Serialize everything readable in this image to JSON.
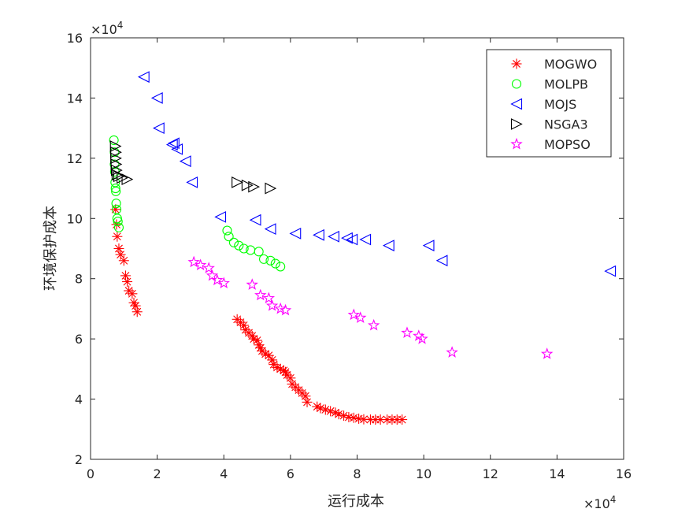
{
  "chart_data": {
    "type": "scatter",
    "title": "",
    "xlabel": "运行成本",
    "ylabel": "环境保护成本",
    "x_exponent": "×10^4",
    "y_exponent": "×10^4",
    "xlim": [
      0,
      16
    ],
    "ylim": [
      2,
      16
    ],
    "xticks": [
      0,
      2,
      4,
      6,
      8,
      10,
      12,
      14,
      16
    ],
    "yticks": [
      2,
      4,
      6,
      8,
      10,
      12,
      14,
      16
    ],
    "grid": false,
    "legend_position": "top-right",
    "series": [
      {
        "name": "MOGWO",
        "marker": "asterisk",
        "color": "#ff0000",
        "points": [
          [
            0.75,
            10.3
          ],
          [
            0.78,
            9.8
          ],
          [
            0.8,
            9.4
          ],
          [
            0.85,
            9.0
          ],
          [
            0.9,
            8.8
          ],
          [
            1.0,
            8.6
          ],
          [
            1.05,
            8.1
          ],
          [
            1.1,
            7.9
          ],
          [
            1.15,
            7.6
          ],
          [
            1.25,
            7.5
          ],
          [
            1.3,
            7.2
          ],
          [
            1.35,
            7.1
          ],
          [
            1.4,
            6.9
          ],
          [
            4.4,
            6.65
          ],
          [
            4.5,
            6.55
          ],
          [
            4.6,
            6.45
          ],
          [
            4.65,
            6.3
          ],
          [
            4.75,
            6.2
          ],
          [
            4.85,
            6.1
          ],
          [
            4.9,
            6.0
          ],
          [
            5.0,
            5.95
          ],
          [
            5.05,
            5.8
          ],
          [
            5.1,
            5.7
          ],
          [
            5.15,
            5.6
          ],
          [
            5.25,
            5.5
          ],
          [
            5.35,
            5.45
          ],
          [
            5.45,
            5.3
          ],
          [
            5.5,
            5.15
          ],
          [
            5.6,
            5.05
          ],
          [
            5.7,
            5.0
          ],
          [
            5.8,
            4.95
          ],
          [
            5.85,
            4.9
          ],
          [
            5.9,
            4.8
          ],
          [
            6.0,
            4.7
          ],
          [
            6.05,
            4.5
          ],
          [
            6.15,
            4.4
          ],
          [
            6.25,
            4.3
          ],
          [
            6.35,
            4.2
          ],
          [
            6.45,
            4.1
          ],
          [
            6.5,
            3.9
          ],
          [
            6.8,
            3.75
          ],
          [
            6.9,
            3.7
          ],
          [
            7.05,
            3.65
          ],
          [
            7.2,
            3.6
          ],
          [
            7.35,
            3.55
          ],
          [
            7.45,
            3.5
          ],
          [
            7.6,
            3.45
          ],
          [
            7.75,
            3.4
          ],
          [
            7.9,
            3.38
          ],
          [
            8.05,
            3.35
          ],
          [
            8.2,
            3.33
          ],
          [
            8.4,
            3.32
          ],
          [
            8.55,
            3.32
          ],
          [
            8.7,
            3.32
          ],
          [
            8.9,
            3.32
          ],
          [
            9.05,
            3.32
          ],
          [
            9.2,
            3.32
          ],
          [
            9.35,
            3.32
          ]
        ]
      },
      {
        "name": "MOLPB",
        "marker": "circle",
        "color": "#00ff00",
        "points": [
          [
            0.7,
            12.6
          ],
          [
            0.72,
            12.2
          ],
          [
            0.72,
            11.8
          ],
          [
            0.73,
            11.55
          ],
          [
            0.74,
            11.2
          ],
          [
            0.75,
            11.0
          ],
          [
            0.76,
            10.9
          ],
          [
            0.77,
            10.5
          ],
          [
            0.78,
            10.3
          ],
          [
            0.8,
            10.0
          ],
          [
            0.82,
            9.9
          ],
          [
            0.85,
            9.7
          ],
          [
            4.1,
            9.6
          ],
          [
            4.15,
            9.4
          ],
          [
            4.3,
            9.2
          ],
          [
            4.45,
            9.1
          ],
          [
            4.6,
            9.0
          ],
          [
            4.8,
            8.95
          ],
          [
            5.05,
            8.9
          ],
          [
            5.2,
            8.65
          ],
          [
            5.4,
            8.6
          ],
          [
            5.55,
            8.5
          ],
          [
            5.7,
            8.4
          ]
        ]
      },
      {
        "name": "MOJS",
        "marker": "triangle-left",
        "color": "#0000ff",
        "points": [
          [
            1.6,
            14.7
          ],
          [
            2.0,
            14.0
          ],
          [
            2.05,
            13.0
          ],
          [
            2.45,
            12.45
          ],
          [
            2.5,
            12.5
          ],
          [
            2.6,
            12.3
          ],
          [
            2.85,
            11.9
          ],
          [
            3.05,
            11.2
          ],
          [
            3.9,
            10.05
          ],
          [
            4.95,
            9.95
          ],
          [
            5.4,
            9.65
          ],
          [
            6.15,
            9.5
          ],
          [
            6.85,
            9.45
          ],
          [
            7.3,
            9.4
          ],
          [
            7.7,
            9.35
          ],
          [
            7.85,
            9.3
          ],
          [
            8.25,
            9.3
          ],
          [
            8.95,
            9.1
          ],
          [
            10.15,
            9.1
          ],
          [
            10.55,
            8.6
          ],
          [
            15.6,
            8.25
          ]
        ]
      },
      {
        "name": "NSGA3",
        "marker": "triangle-right",
        "color": "#000000",
        "points": [
          [
            0.75,
            12.4
          ],
          [
            0.76,
            12.2
          ],
          [
            0.76,
            12.0
          ],
          [
            0.77,
            11.8
          ],
          [
            0.78,
            11.6
          ],
          [
            0.8,
            11.45
          ],
          [
            0.85,
            11.4
          ],
          [
            0.95,
            11.35
          ],
          [
            1.1,
            11.3
          ],
          [
            4.4,
            11.2
          ],
          [
            4.7,
            11.1
          ],
          [
            4.9,
            11.05
          ],
          [
            5.4,
            11.0
          ]
        ]
      },
      {
        "name": "MOPSO",
        "marker": "pentagram",
        "color": "#ff00ff",
        "points": [
          [
            3.1,
            8.55
          ],
          [
            3.3,
            8.45
          ],
          [
            3.55,
            8.35
          ],
          [
            3.65,
            8.1
          ],
          [
            3.8,
            7.95
          ],
          [
            4.0,
            7.85
          ],
          [
            4.85,
            7.8
          ],
          [
            5.1,
            7.45
          ],
          [
            5.35,
            7.35
          ],
          [
            5.45,
            7.1
          ],
          [
            5.7,
            7.0
          ],
          [
            5.85,
            6.95
          ],
          [
            7.9,
            6.8
          ],
          [
            8.1,
            6.7
          ],
          [
            8.5,
            6.45
          ],
          [
            9.5,
            6.2
          ],
          [
            9.85,
            6.1
          ],
          [
            9.95,
            6.0
          ],
          [
            10.85,
            5.55
          ],
          [
            13.7,
            5.5
          ]
        ]
      }
    ]
  }
}
